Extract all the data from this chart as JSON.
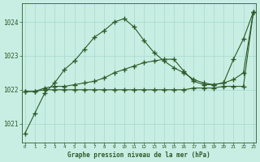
{
  "xlabel": "Graphe pression niveau de la mer (hPa)",
  "bg_color": "#c8eee4",
  "grid_color": "#a8d8cc",
  "line_color": "#2d5a27",
  "hours": [
    0,
    1,
    2,
    3,
    4,
    5,
    6,
    7,
    8,
    9,
    10,
    11,
    12,
    13,
    14,
    15,
    16,
    17,
    18,
    19,
    20,
    21,
    22,
    23
  ],
  "line1": [
    1020.7,
    1021.3,
    1021.9,
    1022.2,
    1022.6,
    1022.85,
    1023.2,
    1023.55,
    1023.75,
    1024.0,
    1024.1,
    1023.85,
    1023.45,
    1023.1,
    1022.85,
    1022.65,
    1022.5,
    1022.3,
    1022.2,
    1022.15,
    1022.2,
    1022.9,
    1023.5,
    1024.3
  ],
  "line2": [
    1021.95,
    1021.95,
    1022.05,
    1022.1,
    1022.1,
    1022.15,
    1022.2,
    1022.25,
    1022.35,
    1022.5,
    1022.6,
    1022.7,
    1022.8,
    1022.85,
    1022.9,
    1022.9,
    1022.55,
    1022.25,
    1022.15,
    1022.15,
    1022.2,
    1022.3,
    1022.5,
    1024.3
  ],
  "line3": [
    1021.95,
    1021.95,
    1022.0,
    1022.0,
    1022.0,
    1022.0,
    1022.0,
    1022.0,
    1022.0,
    1022.0,
    1022.0,
    1022.0,
    1022.0,
    1022.0,
    1022.0,
    1022.0,
    1022.0,
    1022.05,
    1022.05,
    1022.05,
    1022.1,
    1022.1,
    1022.1,
    1024.3
  ],
  "ylim": [
    1020.45,
    1024.55
  ],
  "yticks": [
    1021,
    1022,
    1023,
    1024
  ],
  "xticks": [
    0,
    1,
    2,
    3,
    4,
    5,
    6,
    7,
    8,
    9,
    10,
    11,
    12,
    13,
    14,
    15,
    16,
    17,
    18,
    19,
    20,
    21,
    22,
    23
  ]
}
